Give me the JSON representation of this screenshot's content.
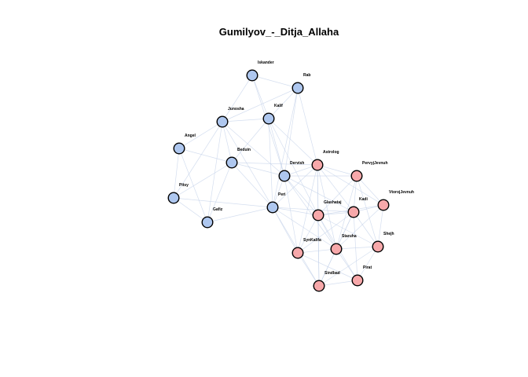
{
  "title": "Gumilyov_-_Ditja_Allaha",
  "colors": {
    "group_blue": "#aec7ef",
    "group_pink": "#f7a8aa",
    "node_border": "#000000",
    "edge": "#c5d3ea",
    "background": "#ffffff"
  },
  "nodes": [
    {
      "id": "Iskander",
      "label": "Iskander",
      "group": "blue"
    },
    {
      "id": "Rab",
      "label": "Rab",
      "group": "blue"
    },
    {
      "id": "Junosha",
      "label": "Junosha",
      "group": "blue"
    },
    {
      "id": "Kalif",
      "label": "Kalif",
      "group": "blue"
    },
    {
      "id": "Angel",
      "label": "Angel",
      "group": "blue"
    },
    {
      "id": "Beduin",
      "label": "Beduin",
      "group": "blue"
    },
    {
      "id": "Dervish",
      "label": "Dervish",
      "group": "blue"
    },
    {
      "id": "Pitsy",
      "label": "Pitsy",
      "group": "blue"
    },
    {
      "id": "Peri",
      "label": "Peri",
      "group": "blue"
    },
    {
      "id": "Gafiz",
      "label": "Gafiz",
      "group": "blue"
    },
    {
      "id": "Astrolog",
      "label": "Astrolog",
      "group": "pink"
    },
    {
      "id": "PervyjJevnuh",
      "label": "PervyjJevnuh",
      "group": "pink"
    },
    {
      "id": "VtorojJevnuh",
      "label": "VtorojJevnuh",
      "group": "pink"
    },
    {
      "id": "Glashataj",
      "label": "Glashataj",
      "group": "pink"
    },
    {
      "id": "Kadi",
      "label": "Kadi",
      "group": "pink"
    },
    {
      "id": "SynKalifa",
      "label": "SynKalifa",
      "group": "pink"
    },
    {
      "id": "Staruha",
      "label": "Staruha",
      "group": "pink"
    },
    {
      "id": "Shejh",
      "label": "Shejh",
      "group": "pink"
    },
    {
      "id": "Sindbad",
      "label": "Sindbad",
      "group": "pink"
    },
    {
      "id": "Pirat",
      "label": "Pirat",
      "group": "pink"
    }
  ],
  "edges": [
    [
      "Iskander",
      "Rab"
    ],
    [
      "Iskander",
      "Junosha"
    ],
    [
      "Iskander",
      "Kalif"
    ],
    [
      "Iskander",
      "Dervish"
    ],
    [
      "Rab",
      "Kalif"
    ],
    [
      "Rab",
      "Dervish"
    ],
    [
      "Rab",
      "Peri"
    ],
    [
      "Rab",
      "Junosha"
    ],
    [
      "Rab",
      "Astrolog"
    ],
    [
      "Junosha",
      "Angel"
    ],
    [
      "Junosha",
      "Beduin"
    ],
    [
      "Junosha",
      "Kalif"
    ],
    [
      "Junosha",
      "Dervish"
    ],
    [
      "Junosha",
      "Peri"
    ],
    [
      "Junosha",
      "Pitsy"
    ],
    [
      "Junosha",
      "Gafiz"
    ],
    [
      "Kalif",
      "Dervish"
    ],
    [
      "Kalif",
      "Beduin"
    ],
    [
      "Kalif",
      "Peri"
    ],
    [
      "Kalif",
      "Astrolog"
    ],
    [
      "Kalif",
      "Glashataj"
    ],
    [
      "Angel",
      "Beduin"
    ],
    [
      "Angel",
      "Pitsy"
    ],
    [
      "Angel",
      "Gafiz"
    ],
    [
      "Beduin",
      "Dervish"
    ],
    [
      "Beduin",
      "Peri"
    ],
    [
      "Beduin",
      "Pitsy"
    ],
    [
      "Beduin",
      "Gafiz"
    ],
    [
      "Beduin",
      "Astrolog"
    ],
    [
      "Dervish",
      "Peri"
    ],
    [
      "Dervish",
      "Astrolog"
    ],
    [
      "Dervish",
      "Glashataj"
    ],
    [
      "Dervish",
      "Kadi"
    ],
    [
      "Dervish",
      "SynKalifa"
    ],
    [
      "Dervish",
      "Staruha"
    ],
    [
      "Dervish",
      "PervyjJevnuh"
    ],
    [
      "Pitsy",
      "Gafiz"
    ],
    [
      "Pitsy",
      "Peri"
    ],
    [
      "Peri",
      "Gafiz"
    ],
    [
      "Peri",
      "Astrolog"
    ],
    [
      "Peri",
      "Glashataj"
    ],
    [
      "Peri",
      "SynKalifa"
    ],
    [
      "Peri",
      "Staruha"
    ],
    [
      "Peri",
      "Kadi"
    ],
    [
      "Peri",
      "Sindbad"
    ],
    [
      "Astrolog",
      "PervyjJevnuh"
    ],
    [
      "Astrolog",
      "Glashataj"
    ],
    [
      "Astrolog",
      "Kadi"
    ],
    [
      "Astrolog",
      "Staruha"
    ],
    [
      "Astrolog",
      "SynKalifa"
    ],
    [
      "Astrolog",
      "Sindbad"
    ],
    [
      "Astrolog",
      "VtorojJevnuh"
    ],
    [
      "PervyjJevnuh",
      "Glashataj"
    ],
    [
      "PervyjJevnuh",
      "Kadi"
    ],
    [
      "PervyjJevnuh",
      "VtorojJevnuh"
    ],
    [
      "PervyjJevnuh",
      "Staruha"
    ],
    [
      "PervyjJevnuh",
      "Shejh"
    ],
    [
      "VtorojJevnuh",
      "Kadi"
    ],
    [
      "VtorojJevnuh",
      "Shejh"
    ],
    [
      "VtorojJevnuh",
      "Staruha"
    ],
    [
      "VtorojJevnuh",
      "Glashataj"
    ],
    [
      "Glashataj",
      "Kadi"
    ],
    [
      "Glashataj",
      "Staruha"
    ],
    [
      "Glashataj",
      "SynKalifa"
    ],
    [
      "Glashataj",
      "Sindbad"
    ],
    [
      "Glashataj",
      "Shejh"
    ],
    [
      "Glashataj",
      "Pirat"
    ],
    [
      "Kadi",
      "Staruha"
    ],
    [
      "Kadi",
      "Shejh"
    ],
    [
      "Kadi",
      "Pirat"
    ],
    [
      "Kadi",
      "Sindbad"
    ],
    [
      "Kadi",
      "SynKalifa"
    ],
    [
      "SynKalifa",
      "Staruha"
    ],
    [
      "SynKalifa",
      "Sindbad"
    ],
    [
      "SynKalifa",
      "Pirat"
    ],
    [
      "Staruha",
      "Shejh"
    ],
    [
      "Staruha",
      "Sindbad"
    ],
    [
      "Staruha",
      "Pirat"
    ],
    [
      "Shejh",
      "Pirat"
    ],
    [
      "Shejh",
      "Sindbad"
    ],
    [
      "Sindbad",
      "Pirat"
    ]
  ]
}
